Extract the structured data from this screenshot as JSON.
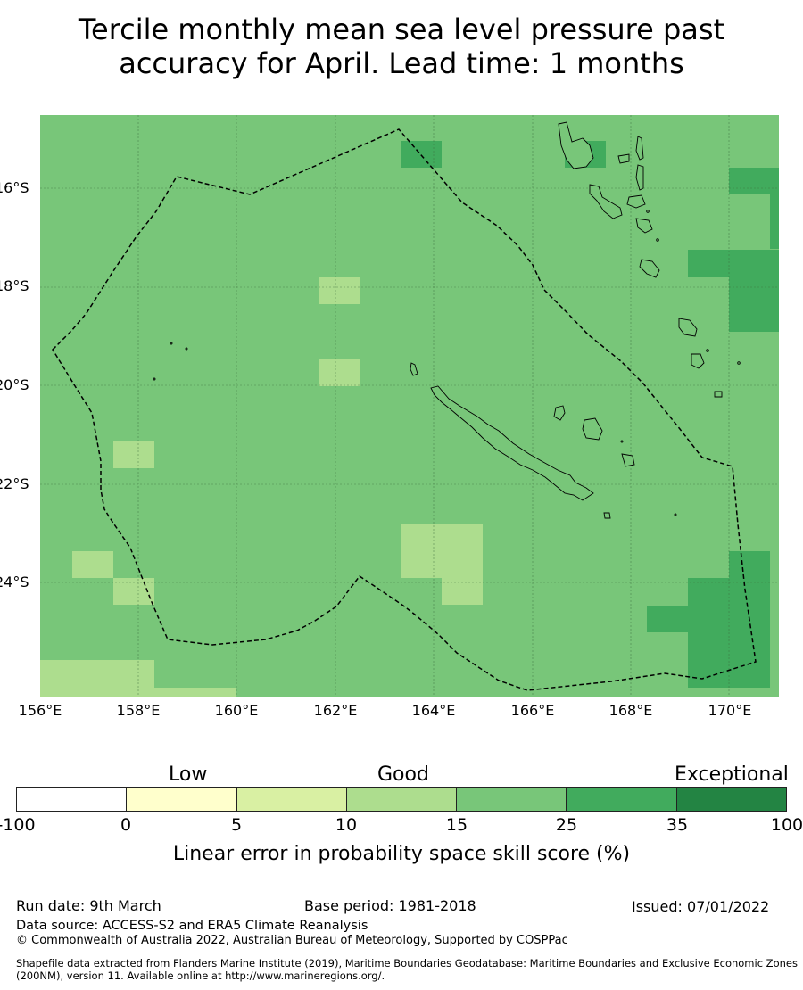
{
  "title": {
    "line1": "Tercile monthly mean sea level pressure past",
    "line2": "accuracy for April. Lead time: 1 months"
  },
  "map": {
    "background_color": "#78c679",
    "lat_labels": [
      "16°S",
      "18°S",
      "20°S",
      "22°S",
      "24°S"
    ],
    "lon_labels": [
      "156°E",
      "158°E",
      "160°E",
      "162°E",
      "164°E",
      "166°E",
      "168°E",
      "170°E"
    ],
    "lon_range": [
      156,
      171
    ],
    "lat_range": [
      -26.3,
      -14.5
    ],
    "boundary": "dashed maritime boundary (EEZ)",
    "land": "New Caledonia and Vanuatu outlines"
  },
  "legend": {
    "categories": [
      "Low",
      "Good",
      "Exceptional"
    ],
    "ticks": [
      "-100",
      "0",
      "5",
      "10",
      "15",
      "25",
      "35",
      "100"
    ],
    "colors": [
      "#ffffff",
      "#ffffcc",
      "#d9f0a3",
      "#addd8e",
      "#78c679",
      "#41ab5d",
      "#238443"
    ],
    "title": "Linear error in probability space skill score (%)"
  },
  "footer": {
    "run_date": "Run date: 9th March",
    "base_period": "Base period: 1981-2018",
    "issued": "Issued: 07/01/2022",
    "data_source": "Data source: ACCESS-S2 and ERA5 Climate Reanalysis",
    "copyright": "© Commonwealth of Australia 2022, Australian Bureau of Meteorology, Supported by COSPPac",
    "shapefile": "Shapefile data extracted from Flanders Marine Institute (2019), Maritime Boundaries Geodatabase: Maritime Boundaries and Exclusive Economic Zones (200NM), version 11. Available online at http://www.marineregions.org/."
  }
}
